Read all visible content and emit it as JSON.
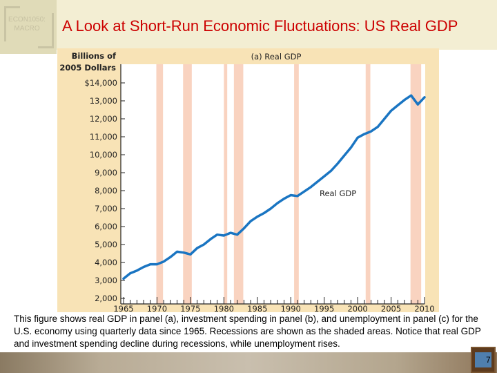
{
  "slide": {
    "logo_text": [
      "ECON1050:",
      "MACRO"
    ],
    "title": "A Look at Short-Run Economic Fluctuations: US Real GDP",
    "caption": "This figure shows real GDP in panel (a), investment spending in panel (b), and unemployment in panel (c) for the U.S. economy using quarterly data since 1965. Recessions are shown as the shaded areas. Notice that real GDP and investment spending decline during recessions, while unemployment rises.",
    "page_number": "7"
  },
  "chart_data": {
    "type": "line",
    "title": "(a) Real GDP",
    "ylabel_lines": [
      "Billions of",
      "2005 Dollars"
    ],
    "xlabel": "",
    "xlim": [
      1965,
      2010
    ],
    "ylim": [
      2000,
      14000
    ],
    "xticks": [
      "1965",
      "1970",
      "1975",
      "1980",
      "1985",
      "1990",
      "1995",
      "2000",
      "2005",
      "2010"
    ],
    "yticks": [
      "2,000",
      "3,000",
      "4,000",
      "5,000",
      "6,000",
      "7,000",
      "8,000",
      "9,000",
      "10,000",
      "11,000",
      "12,000",
      "13,000",
      "$14,000"
    ],
    "grid": false,
    "series": [
      {
        "name": "Real GDP",
        "color": "#1a75c2",
        "x": [
          1965,
          1966,
          1967,
          1968,
          1969,
          1970,
          1971,
          1972,
          1973,
          1974,
          1975,
          1976,
          1977,
          1978,
          1979,
          1980,
          1981,
          1982,
          1983,
          1984,
          1985,
          1986,
          1987,
          1988,
          1989,
          1990,
          1991,
          1992,
          1993,
          1994,
          1995,
          1996,
          1997,
          1998,
          1999,
          2000,
          2001,
          2002,
          2003,
          2004,
          2005,
          2006,
          2007,
          2008,
          2009,
          2010
        ],
        "y": [
          3100,
          3400,
          3550,
          3750,
          3900,
          3900,
          4050,
          4300,
          4600,
          4550,
          4450,
          4800,
          5000,
          5300,
          5550,
          5500,
          5650,
          5550,
          5900,
          6300,
          6550,
          6750,
          7000,
          7300,
          7550,
          7750,
          7700,
          7950,
          8200,
          8500,
          8800,
          9100,
          9500,
          9950,
          10400,
          10950,
          11150,
          11300,
          11550,
          12000,
          12450,
          12750,
          13050,
          13300,
          12800,
          13200
        ]
      }
    ],
    "recessions": [
      [
        1969.9,
        1970.9
      ],
      [
        1973.9,
        1975.2
      ],
      [
        1980.0,
        1980.5
      ],
      [
        1981.5,
        1982.9
      ],
      [
        1990.5,
        1991.2
      ],
      [
        2001.2,
        2001.9
      ],
      [
        2007.9,
        2009.5
      ]
    ],
    "recession_color": "#f9d3c0",
    "panel_color": "#f8e3b6"
  }
}
